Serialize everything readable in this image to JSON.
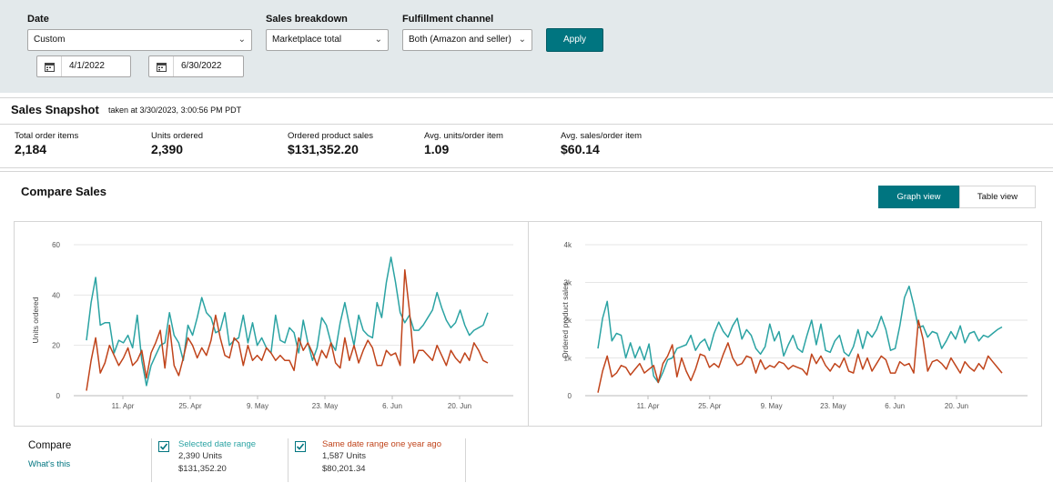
{
  "filters": {
    "date_label": "Date",
    "date_value": "Custom",
    "start_date": "4/1/2022",
    "end_date": "6/30/2022",
    "breakdown_label": "Sales breakdown",
    "breakdown_value": "Marketplace total",
    "channel_label": "Fulfillment channel",
    "channel_value": "Both (Amazon and seller)",
    "apply_label": "Apply"
  },
  "snapshot": {
    "title": "Sales Snapshot",
    "taken": "taken at 3/30/2023, 3:00:56 PM PDT",
    "metrics": [
      {
        "label": "Total order items",
        "value": "2,184"
      },
      {
        "label": "Units ordered",
        "value": "2,390"
      },
      {
        "label": "Ordered product sales",
        "value": "$131,352.20"
      },
      {
        "label": "Avg. units/order item",
        "value": "1.09"
      },
      {
        "label": "Avg. sales/order item",
        "value": "$60.14"
      }
    ]
  },
  "compare": {
    "title": "Compare Sales",
    "graph_view": "Graph view",
    "table_view": "Table view",
    "compare_label": "Compare",
    "whats_this": "What's this",
    "selected": {
      "name": "Selected date range",
      "units": "2,390 Units",
      "sales": "$131,352.20"
    },
    "prior": {
      "name": "Same date range one year ago",
      "units": "1,587 Units",
      "sales": "$80,201.34"
    }
  },
  "colors": {
    "selected": "#2ba3a3",
    "prior": "#c0441b",
    "accent": "#007580"
  },
  "chart_data": [
    {
      "type": "line",
      "ylabel": "Units ordered",
      "ylim": [
        0,
        60
      ],
      "yticks": [
        "0",
        "20",
        "40",
        "60"
      ],
      "xticks": [
        "11. Apr",
        "25. Apr",
        "9. May",
        "23. May",
        "6. Jun",
        "20. Jun"
      ],
      "series": [
        {
          "name": "Selected date range",
          "values": [
            22,
            37,
            47,
            28,
            29,
            29,
            17,
            22,
            21,
            24,
            19,
            32,
            14,
            4,
            12,
            16,
            20,
            21,
            33,
            24,
            21,
            14,
            28,
            24,
            31,
            39,
            33,
            31,
            25,
            26,
            33,
            20,
            22,
            23,
            32,
            21,
            29,
            20,
            23,
            19,
            17,
            32,
            22,
            21,
            27,
            25,
            17,
            30,
            21,
            14,
            19,
            31,
            28,
            21,
            18,
            29,
            37,
            28,
            20,
            32,
            26,
            24,
            23,
            37,
            31,
            45,
            55,
            45,
            33,
            29,
            32,
            26,
            26,
            28,
            31,
            34,
            41,
            35,
            30,
            27,
            29,
            34,
            28,
            24,
            26,
            27,
            28,
            33
          ]
        },
        {
          "name": "Same date range one year ago",
          "values": [
            2,
            14,
            23,
            9,
            13,
            20,
            16,
            12,
            15,
            19,
            12,
            14,
            18,
            7,
            17,
            21,
            26,
            11,
            28,
            12,
            8,
            15,
            23,
            20,
            15,
            19,
            16,
            22,
            32,
            23,
            16,
            15,
            23,
            21,
            12,
            20,
            14,
            16,
            14,
            19,
            17,
            14,
            16,
            14,
            14,
            10,
            23,
            18,
            21,
            17,
            12,
            18,
            15,
            21,
            13,
            11,
            23,
            14,
            20,
            13,
            18,
            22,
            19,
            12,
            12,
            18,
            16,
            17,
            12,
            50,
            34,
            13,
            18,
            18,
            16,
            14,
            20,
            16,
            12,
            18,
            15,
            13,
            17,
            14,
            21,
            18,
            14,
            13
          ]
        }
      ]
    },
    {
      "type": "line",
      "ylabel": "Ordered product sales",
      "ylim": [
        0,
        4000
      ],
      "yticks": [
        "0",
        "1k",
        "2k",
        "3k",
        "4k"
      ],
      "xticks": [
        "11. Apr",
        "25. Apr",
        "9. May",
        "23. May",
        "6. Jun",
        "20. Jun"
      ],
      "series": [
        {
          "name": "Selected date range",
          "values": [
            1250,
            2050,
            2500,
            1450,
            1650,
            1600,
            1000,
            1400,
            1000,
            1300,
            950,
            1370,
            520,
            350,
            620,
            950,
            1000,
            1250,
            1300,
            1350,
            1600,
            1200,
            1400,
            1500,
            1200,
            1650,
            1950,
            1700,
            1550,
            1850,
            2050,
            1500,
            1750,
            1600,
            1250,
            1100,
            1300,
            1900,
            1450,
            1700,
            1050,
            1350,
            1600,
            1250,
            1150,
            1600,
            2000,
            1350,
            1900,
            1200,
            1150,
            1450,
            1600,
            1150,
            1050,
            1300,
            1750,
            1250,
            1700,
            1550,
            1750,
            2100,
            1750,
            1200,
            1250,
            1850,
            2600,
            2900,
            2400,
            1800,
            1850,
            1550,
            1700,
            1650,
            1250,
            1450,
            1700,
            1500,
            1850,
            1400,
            1650,
            1700,
            1450,
            1600,
            1550,
            1650,
            1750,
            1820
          ]
        },
        {
          "name": "Same date range one year ago",
          "values": [
            80,
            650,
            1050,
            500,
            600,
            800,
            750,
            550,
            700,
            850,
            600,
            700,
            800,
            350,
            850,
            1050,
            1350,
            500,
            1000,
            650,
            400,
            700,
            1100,
            1050,
            750,
            850,
            750,
            1100,
            1400,
            1000,
            800,
            850,
            1050,
            1000,
            600,
            950,
            700,
            800,
            750,
            900,
            850,
            700,
            800,
            750,
            700,
            550,
            1100,
            850,
            1050,
            800,
            650,
            850,
            750,
            1000,
            650,
            600,
            1100,
            700,
            1000,
            650,
            850,
            1050,
            950,
            600,
            600,
            900,
            800,
            850,
            600,
            2000,
            1500,
            650,
            900,
            950,
            850,
            700,
            1000,
            800,
            600,
            900,
            750,
            650,
            850,
            700,
            1050,
            900,
            750,
            600
          ]
        }
      ]
    }
  ]
}
